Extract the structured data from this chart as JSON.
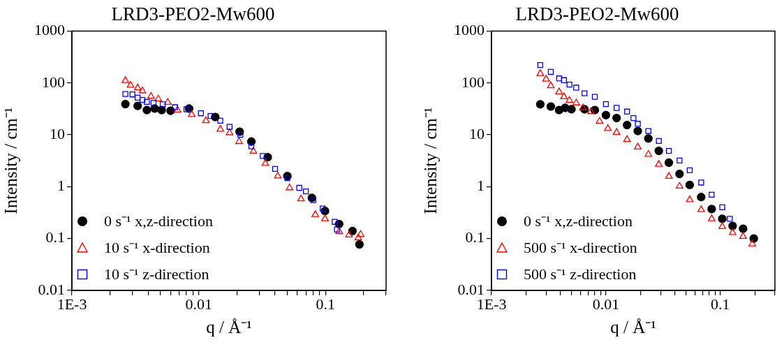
{
  "chart_data": [
    {
      "type": "scatter",
      "title": "LRD3-PEO2-Mw600",
      "xlabel": "q / Å⁻¹",
      "ylabel": "Intensity / cm⁻¹",
      "log": "xy",
      "grid": false,
      "legend": "bottom left",
      "xlim": [
        0.001,
        0.3
      ],
      "xticks": [
        {
          "value": 0.001,
          "label": "1E-3"
        },
        {
          "value": 0.002,
          "label": null
        },
        {
          "value": 0.003,
          "label": null
        },
        {
          "value": 0.004,
          "label": null
        },
        {
          "value": 0.005,
          "label": null
        },
        {
          "value": 0.006,
          "label": null
        },
        {
          "value": 0.007,
          "label": null
        },
        {
          "value": 0.008,
          "label": null
        },
        {
          "value": 0.009,
          "label": null
        },
        {
          "value": 0.01,
          "label": "0.01"
        },
        {
          "value": 0.02,
          "label": null
        },
        {
          "value": 0.03,
          "label": null
        },
        {
          "value": 0.04,
          "label": null
        },
        {
          "value": 0.05,
          "label": null
        },
        {
          "value": 0.06,
          "label": null
        },
        {
          "value": 0.07,
          "label": null
        },
        {
          "value": 0.08,
          "label": null
        },
        {
          "value": 0.09,
          "label": null
        },
        {
          "value": 0.1,
          "label": "0.1"
        },
        {
          "value": 0.2,
          "label": null
        },
        {
          "value": 0.3,
          "label": null
        }
      ],
      "ylim": [
        0.01,
        1000
      ],
      "yticks": [
        0.01,
        0.1,
        1,
        10,
        100,
        1000
      ],
      "series": [
        {
          "name": "0 s⁻¹ x,z-direction",
          "color": "#000000",
          "marker": "circle",
          "x": [
            0.00264,
            0.0033,
            0.0039,
            0.0045,
            0.0051,
            0.006,
            0.0084,
            0.0135,
            0.021,
            0.026,
            0.035,
            0.05,
            0.078,
            0.099,
            0.128,
            0.163,
            0.185
          ],
          "values": [
            39,
            36,
            30,
            32,
            30,
            29,
            32,
            22,
            11.5,
            7.4,
            3.7,
            1.6,
            0.61,
            0.34,
            0.19,
            0.14,
            0.077
          ]
        },
        {
          "name": "10 s⁻¹ x-direction",
          "color": "#ff0000",
          "marker": "triangle",
          "x": [
            0.00264,
            0.0029,
            0.0033,
            0.0036,
            0.0042,
            0.0048,
            0.0057,
            0.0068,
            0.0088,
            0.0114,
            0.0148,
            0.0175,
            0.0208,
            0.027,
            0.0335,
            0.042,
            0.052,
            0.064,
            0.083,
            0.099,
            0.128,
            0.153,
            0.181,
            0.189
          ],
          "values": [
            111,
            90,
            80,
            70,
            55,
            49,
            42,
            30,
            24.5,
            18.7,
            12.8,
            10.9,
            7.4,
            4.8,
            2.8,
            1.6,
            0.95,
            0.58,
            0.29,
            0.24,
            0.137,
            0.117,
            0.103,
            0.12
          ]
        },
        {
          "name": "10 s⁻¹ z-direction",
          "color": "#0000ff",
          "marker": "square",
          "x": [
            0.00264,
            0.003,
            0.0033,
            0.0036,
            0.0039,
            0.0044,
            0.0052,
            0.0065,
            0.008,
            0.0104,
            0.0124,
            0.0148,
            0.0175,
            0.0213,
            0.026,
            0.032,
            0.04,
            0.05,
            0.062,
            0.07,
            0.08,
            0.095,
            0.118,
            0.123
          ],
          "values": [
            61,
            60,
            52,
            47,
            43,
            41,
            38.6,
            34,
            31,
            26,
            23,
            18.7,
            14.2,
            10,
            6,
            3.9,
            2.2,
            1.46,
            0.95,
            0.81,
            0.55,
            0.38,
            0.21,
            0.15
          ]
        }
      ]
    },
    {
      "type": "scatter",
      "title": "LRD3-PEO2-Mw600",
      "xlabel": "q / Å⁻¹",
      "ylabel": "Intensity / cm⁻¹",
      "log": "xy",
      "grid": false,
      "legend": "bottom left",
      "xlim": [
        0.001,
        0.3
      ],
      "xticks": [
        {
          "value": 0.001,
          "label": "1E-3"
        },
        {
          "value": 0.002,
          "label": null
        },
        {
          "value": 0.003,
          "label": null
        },
        {
          "value": 0.004,
          "label": null
        },
        {
          "value": 0.005,
          "label": null
        },
        {
          "value": 0.006,
          "label": null
        },
        {
          "value": 0.007,
          "label": null
        },
        {
          "value": 0.008,
          "label": null
        },
        {
          "value": 0.009,
          "label": null
        },
        {
          "value": 0.01,
          "label": "0.01"
        },
        {
          "value": 0.02,
          "label": null
        },
        {
          "value": 0.03,
          "label": null
        },
        {
          "value": 0.04,
          "label": null
        },
        {
          "value": 0.05,
          "label": null
        },
        {
          "value": 0.06,
          "label": null
        },
        {
          "value": 0.07,
          "label": null
        },
        {
          "value": 0.08,
          "label": null
        },
        {
          "value": 0.09,
          "label": null
        },
        {
          "value": 0.1,
          "label": "0.1"
        },
        {
          "value": 0.2,
          "label": null
        },
        {
          "value": 0.3,
          "label": null
        }
      ],
      "ylim": [
        0.01,
        1000
      ],
      "yticks": [
        0.01,
        0.1,
        1,
        10,
        100,
        1000
      ],
      "series": [
        {
          "name": "0 s⁻¹ x,z-direction",
          "color": "#000000",
          "marker": "circle",
          "x": [
            0.00267,
            0.0033,
            0.0039,
            0.0044,
            0.005,
            0.0065,
            0.008,
            0.01,
            0.0124,
            0.0153,
            0.019,
            0.0235,
            0.029,
            0.0355,
            0.044,
            0.054,
            0.068,
            0.084,
            0.104,
            0.128,
            0.158,
            0.196
          ],
          "values": [
            38.8,
            35,
            30,
            33,
            31,
            31,
            30,
            24,
            21,
            15.4,
            11.8,
            8.5,
            4.9,
            2.9,
            1.76,
            1.08,
            0.63,
            0.37,
            0.24,
            0.175,
            0.155,
            0.1
          ]
        },
        {
          "name": "500 s⁻¹ x-direction",
          "color": "#ff0000",
          "marker": "triangle",
          "x": [
            0.00267,
            0.003,
            0.0033,
            0.0039,
            0.0043,
            0.0048,
            0.0055,
            0.0063,
            0.0074,
            0.0088,
            0.0104,
            0.0124,
            0.0153,
            0.019,
            0.0235,
            0.029,
            0.0355,
            0.044,
            0.054,
            0.068,
            0.084,
            0.104,
            0.128,
            0.158,
            0.19
          ],
          "values": [
            151,
            118,
            88,
            67,
            54,
            46,
            41,
            33,
            28,
            18.2,
            13.2,
            11.1,
            8.1,
            5.8,
            4.2,
            2.7,
            1.58,
            1.02,
            0.56,
            0.36,
            0.24,
            0.17,
            0.13,
            0.11,
            0.079
          ]
        },
        {
          "name": "500 s⁻¹ z-direction",
          "color": "#0000ff",
          "marker": "square",
          "x": [
            0.00267,
            0.0033,
            0.0039,
            0.0043,
            0.0048,
            0.0055,
            0.0065,
            0.008,
            0.01,
            0.0124,
            0.0153,
            0.0174,
            0.019,
            0.0235,
            0.029,
            0.0355,
            0.044,
            0.054,
            0.068,
            0.084,
            0.104,
            0.121
          ],
          "values": [
            221,
            163,
            122,
            113,
            93,
            81,
            63,
            54,
            39,
            33,
            28,
            21,
            16.3,
            11.8,
            7.6,
            4.9,
            3.2,
            2.07,
            1.2,
            0.7,
            0.4,
            0.24
          ]
        }
      ]
    }
  ]
}
